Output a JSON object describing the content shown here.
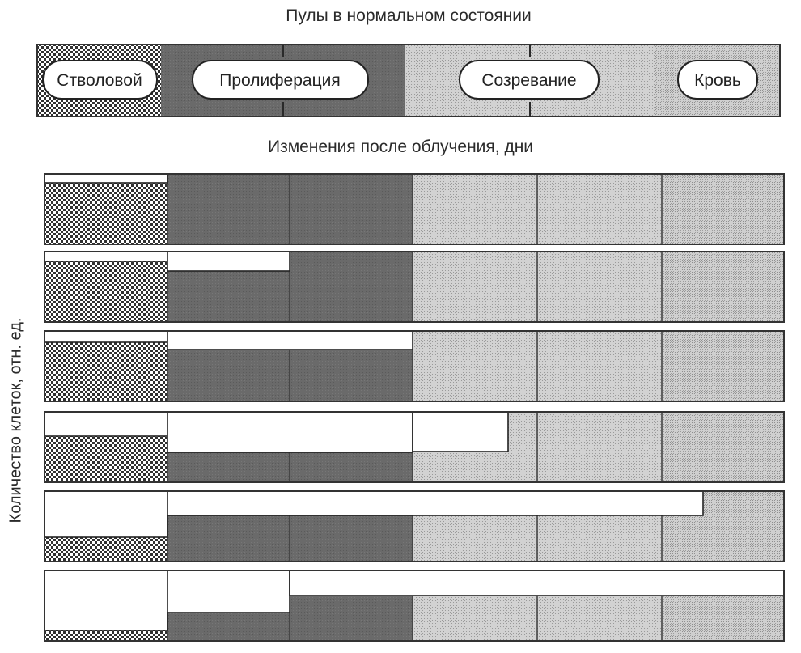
{
  "titles": {
    "normal_state": "Пулы в нормальном состоянии",
    "after_irradiation": "Изменения после облучения, дни"
  },
  "y_axis_label": "Количество клеток, отн. ед.",
  "pools": [
    {
      "key": "stem",
      "label": "Стволовой",
      "pattern": "checker"
    },
    {
      "key": "proliferation",
      "label": "Пролиферация",
      "pattern": "dark"
    },
    {
      "key": "maturation",
      "label": "Созревание",
      "pattern": "light"
    },
    {
      "key": "blood",
      "label": "Кровь",
      "pattern": "fine"
    }
  ],
  "rows": [
    {
      "segments": [
        0.13,
        0,
        0,
        0,
        0,
        0
      ]
    },
    {
      "segments": [
        0.14,
        0.28,
        0,
        0,
        0,
        0
      ]
    },
    {
      "segments": [
        0.16,
        0.27,
        0.27,
        0,
        0,
        0
      ]
    },
    {
      "segments": [
        0.35,
        0.58,
        0.58,
        0.56,
        0,
        0
      ]
    },
    {
      "segments": [
        0.65,
        0.34,
        0.34,
        0.34,
        0.34,
        0
      ]
    },
    {
      "segments": [
        0.85,
        0.6,
        0.36,
        0.36,
        0.36,
        0.36
      ]
    }
  ],
  "colors": {
    "dark": "#6a6a6a",
    "light": "#c8c8c8",
    "fine": "#bcbcbc",
    "border": "#333333"
  }
}
